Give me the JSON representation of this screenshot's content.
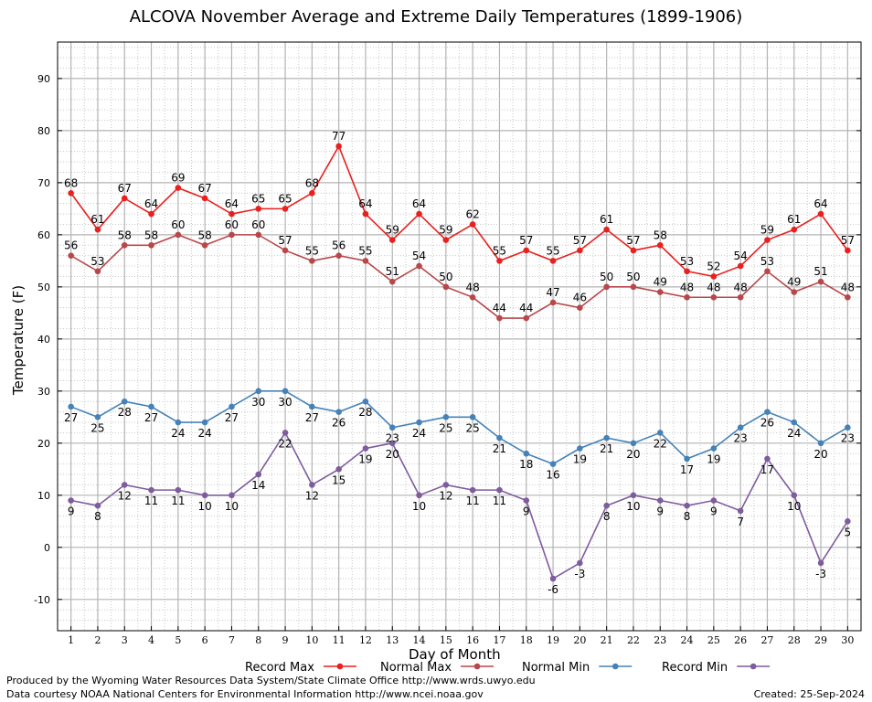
{
  "chart_data": {
    "type": "line",
    "title": "ALCOVA November Average and Extreme Daily Temperatures (1899-1906)",
    "xlabel": "Day of Month",
    "ylabel": "Temperature (F)",
    "x": [
      1,
      2,
      3,
      4,
      5,
      6,
      7,
      8,
      9,
      10,
      11,
      12,
      13,
      14,
      15,
      16,
      17,
      18,
      19,
      20,
      21,
      22,
      23,
      24,
      25,
      26,
      27,
      28,
      29,
      30
    ],
    "xlim": [
      0.5,
      30.5
    ],
    "ylim": [
      -16,
      97
    ],
    "yticks": [
      -10,
      0,
      10,
      20,
      30,
      40,
      50,
      60,
      70,
      80,
      90
    ],
    "grid": true,
    "legend_position": "bottom",
    "series": [
      {
        "name": "Record Max",
        "color": "#e8201e",
        "label_pos": "above",
        "values": [
          68,
          61,
          67,
          64,
          69,
          67,
          64,
          65,
          65,
          68,
          77,
          64,
          59,
          64,
          59,
          62,
          55,
          57,
          55,
          57,
          61,
          57,
          58,
          53,
          52,
          54,
          59,
          61,
          64,
          57
        ]
      },
      {
        "name": "Normal Max",
        "color": "#b9474a",
        "label_pos": "above",
        "values": [
          56,
          53,
          58,
          58,
          60,
          58,
          60,
          60,
          57,
          55,
          56,
          55,
          51,
          54,
          50,
          48,
          44,
          44,
          47,
          46,
          50,
          50,
          49,
          48,
          48,
          48,
          53,
          49,
          51,
          48
        ]
      },
      {
        "name": "Normal Min",
        "color": "#4682b8",
        "label_pos": "below",
        "values": [
          27,
          25,
          28,
          27,
          24,
          24,
          27,
          30,
          30,
          27,
          26,
          28,
          23,
          24,
          25,
          25,
          21,
          18,
          16,
          19,
          21,
          20,
          22,
          17,
          19,
          23,
          26,
          24,
          20,
          23
        ]
      },
      {
        "name": "Record Min",
        "color": "#7e5c9e",
        "label_pos": "below",
        "values": [
          9,
          8,
          12,
          11,
          11,
          10,
          10,
          14,
          22,
          12,
          15,
          19,
          20,
          10,
          12,
          11,
          11,
          9,
          -6,
          -3,
          8,
          10,
          9,
          8,
          9,
          7,
          17,
          10,
          -3,
          5
        ]
      }
    ]
  },
  "footer": {
    "credit_line1": "Produced by the Wyoming Water Resources Data System/State Climate Office http://www.wrds.uwyo.edu",
    "credit_line2": "Data courtesy NOAA National Centers for Environmental Information http://www.ncei.noaa.gov",
    "created": "Created:  25-Sep-2024"
  }
}
